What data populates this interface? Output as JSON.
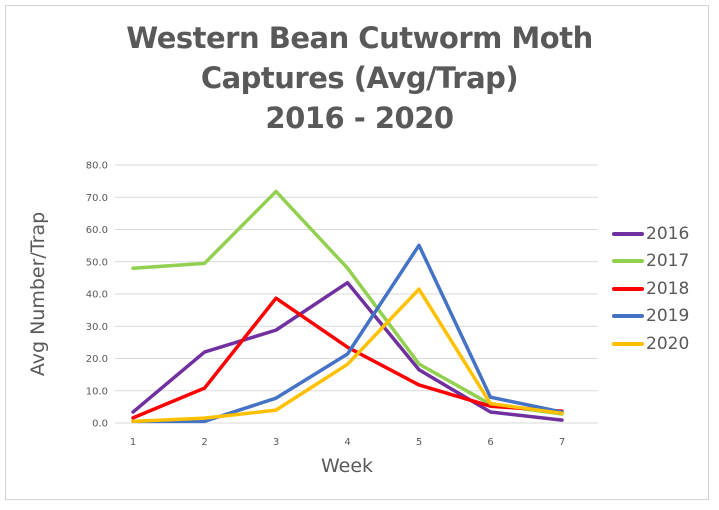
{
  "chart_data": {
    "type": "line",
    "title": "Western Bean Cutworm Moth Captures (Avg/Trap) 2016 - 2020",
    "title_lines": [
      "Western Bean Cutworm Moth",
      "Captures (Avg/Trap)",
      "2016 - 2020"
    ],
    "xlabel": "Week",
    "ylabel": "Avg Number/Trap",
    "categories": [
      "1",
      "2",
      "3",
      "4",
      "5",
      "6",
      "7"
    ],
    "yticks": [
      "0.0",
      "10.0",
      "20.0",
      "30.0",
      "40.0",
      "50.0",
      "60.0",
      "70.0",
      "80.0"
    ],
    "ylim": [
      0,
      80
    ],
    "grid": true,
    "legend_position": "right",
    "series": [
      {
        "name": "2016",
        "color": "#7030A0",
        "values": [
          3.4,
          22.0,
          28.8,
          43.5,
          16.5,
          3.4,
          0.9
        ]
      },
      {
        "name": "2017",
        "color": "#92D050",
        "values": [
          48.0,
          49.5,
          71.8,
          48.0,
          18.3,
          5.8,
          2.8
        ]
      },
      {
        "name": "2018",
        "color": "#FF0000",
        "values": [
          1.6,
          10.8,
          38.7,
          23.5,
          11.8,
          5.2,
          3.7
        ]
      },
      {
        "name": "2019",
        "color": "#4472C4",
        "values": [
          0.5,
          0.5,
          7.7,
          21.4,
          55.1,
          8.0,
          3.4
        ]
      },
      {
        "name": "2020",
        "color": "#FFC000",
        "values": [
          0.5,
          1.5,
          4.0,
          18.2,
          41.5,
          6.0,
          3.0
        ]
      }
    ]
  }
}
